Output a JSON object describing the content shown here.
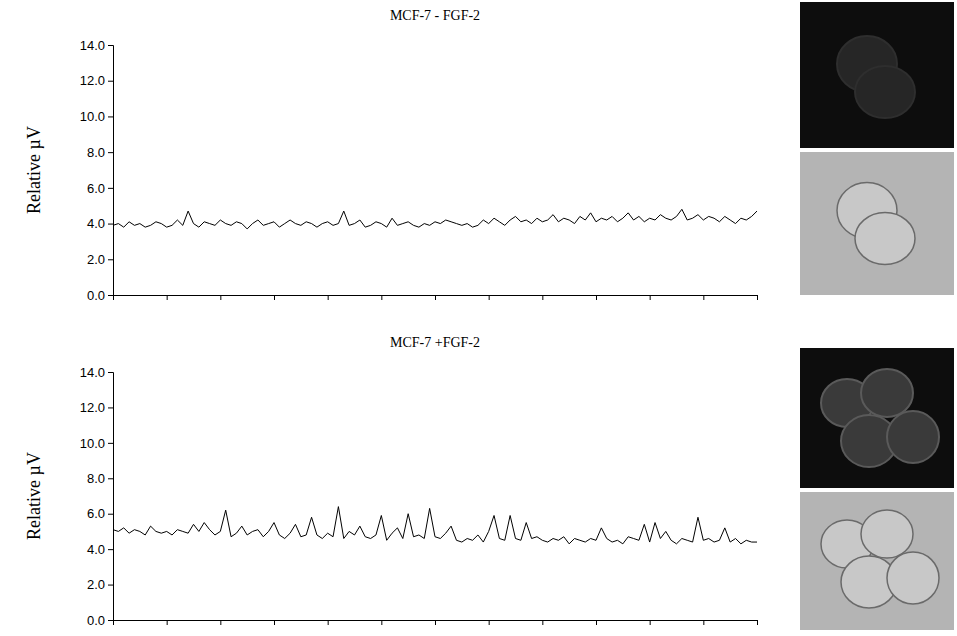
{
  "chart_data": [
    {
      "type": "line",
      "title": "MCF-7 - FGF-2",
      "ylabel": "Relative µV",
      "color": "#000000",
      "xlim": [
        0,
        120
      ],
      "xticks": [
        0,
        10,
        20,
        30,
        40,
        50,
        60,
        70,
        80,
        90,
        100,
        110,
        120
      ],
      "ylim": [
        0,
        14
      ],
      "yticks": [
        {
          "value": 0,
          "label": "0.0"
        },
        {
          "value": 2,
          "label": "2.0"
        },
        {
          "value": 4,
          "label": "4.0"
        },
        {
          "value": 6,
          "label": "6.0"
        },
        {
          "value": 8,
          "label": "8.0"
        },
        {
          "value": 10,
          "label": "10.0"
        },
        {
          "value": 12,
          "label": "12.0"
        },
        {
          "value": 14,
          "label": "14.0"
        }
      ],
      "grid": false,
      "tick_labels": "y",
      "values": [
        3.9,
        4.0,
        3.8,
        4.1,
        3.9,
        4.0,
        3.8,
        3.9,
        4.1,
        4.0,
        3.8,
        3.9,
        4.2,
        3.9,
        4.7,
        4.0,
        3.8,
        4.1,
        4.0,
        3.9,
        4.2,
        4.0,
        3.9,
        4.1,
        4.0,
        3.7,
        4.0,
        4.2,
        3.9,
        4.0,
        4.1,
        3.8,
        4.0,
        4.2,
        4.0,
        3.9,
        4.1,
        4.0,
        3.8,
        4.0,
        4.1,
        3.9,
        4.0,
        4.7,
        3.9,
        4.0,
        4.2,
        3.8,
        3.9,
        4.1,
        4.0,
        3.8,
        4.3,
        3.9,
        4.0,
        4.1,
        3.9,
        3.8,
        4.0,
        3.9,
        4.1,
        4.0,
        4.2,
        4.1,
        4.0,
        3.9,
        4.0,
        3.8,
        3.9,
        4.2,
        4.0,
        4.3,
        4.1,
        3.9,
        4.2,
        4.4,
        4.1,
        4.2,
        4.0,
        4.3,
        4.1,
        4.2,
        4.5,
        4.1,
        4.3,
        4.2,
        4.0,
        4.4,
        4.2,
        4.6,
        4.1,
        4.3,
        4.2,
        4.4,
        4.1,
        4.3,
        4.6,
        4.2,
        4.4,
        4.1,
        4.3,
        4.2,
        4.5,
        4.3,
        4.2,
        4.4,
        4.8,
        4.2,
        4.3,
        4.5,
        4.2,
        4.4,
        4.3,
        4.1,
        4.4,
        4.2,
        4.0,
        4.3,
        4.2,
        4.4,
        4.7
      ]
    },
    {
      "type": "line",
      "title": "MCF-7 +FGF-2",
      "ylabel": "Relative µV",
      "color": "#000000",
      "xlim": [
        0,
        120
      ],
      "xticks": [
        0,
        10,
        20,
        30,
        40,
        50,
        60,
        70,
        80,
        90,
        100,
        110,
        120
      ],
      "ylim": [
        0,
        14
      ],
      "yticks": [
        {
          "value": 0,
          "label": "0.0"
        },
        {
          "value": 2,
          "label": "2.0"
        },
        {
          "value": 4,
          "label": "4.0"
        },
        {
          "value": 6,
          "label": "6.0"
        },
        {
          "value": 8,
          "label": "8.0"
        },
        {
          "value": 10,
          "label": "10.0"
        },
        {
          "value": 12,
          "label": "12.0"
        },
        {
          "value": 14,
          "label": "14.0"
        }
      ],
      "grid": false,
      "tick_labels": "y",
      "values": [
        5.1,
        5.0,
        5.2,
        4.9,
        5.1,
        5.0,
        4.8,
        5.3,
        5.0,
        4.9,
        5.0,
        4.8,
        5.1,
        5.0,
        4.9,
        5.4,
        5.0,
        5.5,
        5.1,
        4.8,
        5.0,
        6.2,
        4.7,
        4.9,
        5.3,
        4.8,
        5.0,
        5.1,
        4.7,
        5.0,
        5.5,
        4.8,
        4.6,
        4.9,
        5.4,
        4.7,
        4.8,
        5.8,
        4.8,
        4.6,
        4.9,
        4.7,
        6.4,
        4.6,
        5.0,
        4.8,
        5.3,
        4.7,
        4.6,
        4.8,
        5.9,
        4.5,
        4.9,
        5.2,
        4.6,
        6.0,
        4.7,
        4.8,
        4.6,
        6.3,
        4.7,
        4.6,
        4.9,
        5.3,
        4.5,
        4.4,
        4.6,
        4.5,
        4.8,
        4.4,
        5.0,
        5.9,
        4.6,
        4.5,
        5.9,
        4.6,
        4.5,
        5.5,
        4.6,
        4.7,
        4.5,
        4.4,
        4.6,
        4.5,
        4.7,
        4.3,
        4.6,
        4.5,
        4.4,
        4.6,
        4.5,
        5.2,
        4.6,
        4.4,
        4.5,
        4.3,
        4.7,
        4.6,
        4.5,
        5.4,
        4.4,
        5.5,
        4.6,
        5.0,
        4.5,
        4.3,
        4.6,
        4.5,
        4.4,
        5.8,
        4.5,
        4.6,
        4.4,
        4.5,
        5.2,
        4.4,
        4.6,
        4.3,
        4.5,
        4.4,
        4.4
      ]
    }
  ]
}
